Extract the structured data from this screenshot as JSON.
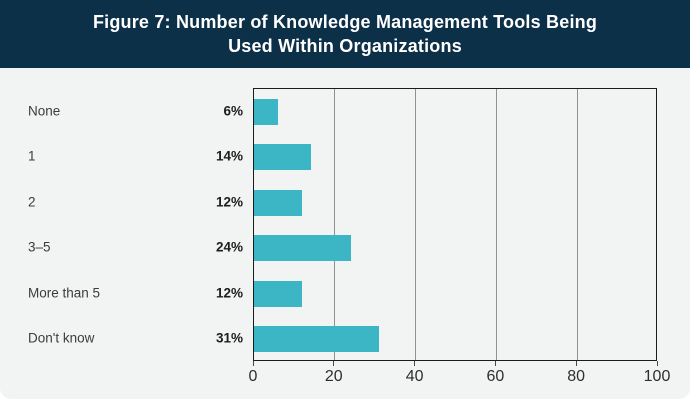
{
  "header": {
    "title_line1": "Figure 7: Number of Knowledge Management Tools Being",
    "title_line2": "Used Within Organizations",
    "background": "#0d3049",
    "text_color": "#ffffff"
  },
  "chart_data": {
    "type": "bar",
    "orientation": "horizontal",
    "title": "Figure 7: Number of Knowledge Management Tools Being Used Within Organizations",
    "categories": [
      "None",
      "1",
      "2",
      "3–5",
      "More than 5",
      "Don't know"
    ],
    "values": [
      6,
      14,
      12,
      24,
      12,
      31
    ],
    "value_labels": [
      "6%",
      "14%",
      "12%",
      "24%",
      "12%",
      "31%"
    ],
    "x_ticks": [
      "0",
      "20",
      "40",
      "60",
      "80",
      "100"
    ],
    "x_tick_values": [
      0,
      20,
      40,
      60,
      80,
      100
    ],
    "xlim": [
      0,
      100
    ],
    "xlabel": "",
    "ylabel": "",
    "grid": true,
    "legend": false,
    "bar_color": "#3cb6c4",
    "plot_background": "#f2f3f3",
    "card_background": "#f2f3f3"
  }
}
